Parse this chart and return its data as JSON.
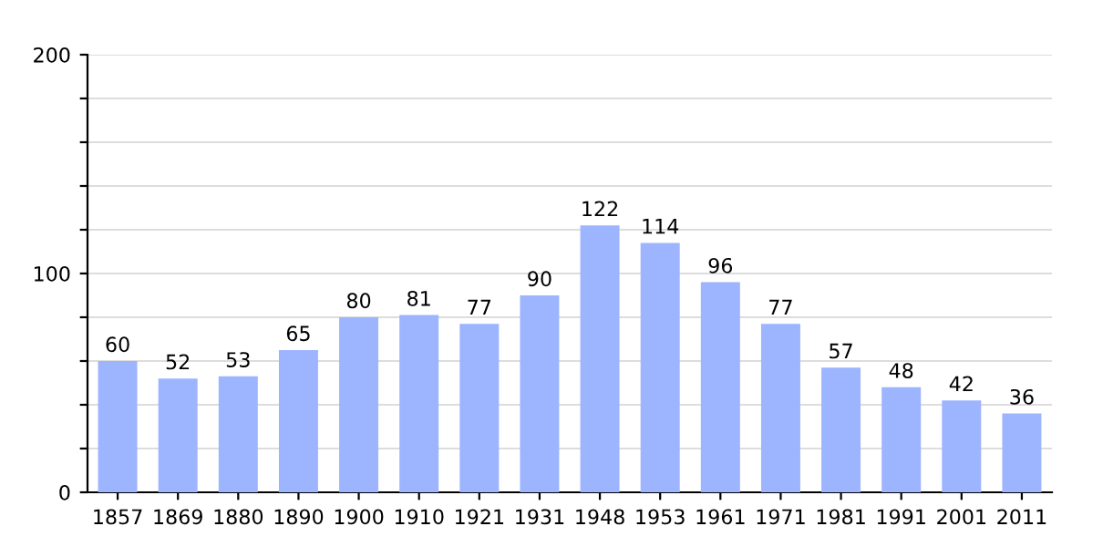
{
  "chart_data": {
    "type": "bar",
    "categories": [
      "1857",
      "1869",
      "1880",
      "1890",
      "1900",
      "1910",
      "1921",
      "1931",
      "1948",
      "1953",
      "1961",
      "1971",
      "1981",
      "1991",
      "2001",
      "2011"
    ],
    "values": [
      60,
      52,
      53,
      65,
      80,
      81,
      77,
      90,
      122,
      114,
      96,
      77,
      57,
      48,
      42,
      36
    ],
    "color": "#9db4ff",
    "ylim": [
      0,
      200
    ],
    "yticks": [
      0,
      {
        "value": 20,
        "label": null
      },
      {
        "value": 40,
        "label": null
      },
      {
        "value": 60,
        "label": null
      },
      {
        "value": 80,
        "label": null
      },
      100,
      {
        "value": 120,
        "label": null
      },
      {
        "value": 140,
        "label": null
      },
      {
        "value": 160,
        "label": null
      },
      {
        "value": 180,
        "label": null
      },
      200
    ],
    "grid": "y",
    "data_labels": true
  }
}
